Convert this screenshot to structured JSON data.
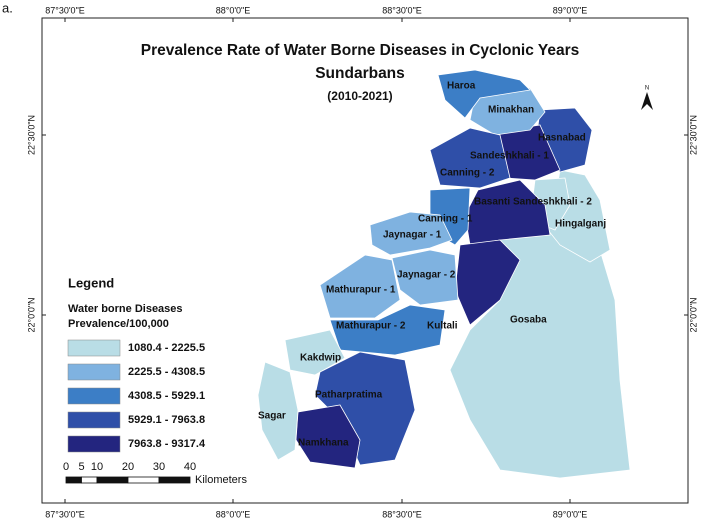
{
  "panel_label": "a.",
  "title": [
    "Prevalence Rate of Water Borne Diseases in Cyclonic Years",
    "Sundarbans",
    "(2010-2021)"
  ],
  "longitudes": [
    "87°30'0\"E",
    "88°0'0\"E",
    "88°30'0\"E",
    "89°0'0\"E"
  ],
  "latitudes": [
    "22°30'0\"N",
    "22°0'0\"N"
  ],
  "north": "N",
  "legend": {
    "title": "Legend",
    "subtitle": [
      "Water borne Diseases",
      "Prevalence/100,000"
    ],
    "classes": [
      "1080.4 - 2225.5",
      "2225.5 - 4308.5",
      "4308.5 - 5929.1",
      "5929.1 - 7963.8",
      "7963.8 - 9317.4"
    ]
  },
  "scale": {
    "ticks": [
      0,
      5,
      10,
      20,
      30,
      40
    ],
    "unit": "Kilometers"
  },
  "regions": [
    "Haroa",
    "Minakhan",
    "Hasnabad",
    "Sandeshkhali - 1",
    "Canning - 2",
    "Basanti",
    "Sandeshkhali - 2",
    "Hingalganj",
    "Canning - 1",
    "Jaynagar - 1",
    "Jaynagar - 2",
    "Mathurapur - 1",
    "Mathurapur - 2",
    "Kultali",
    "Gosaba",
    "Kakdwip",
    "Patharpratima",
    "Sagar",
    "Namkhana"
  ]
}
